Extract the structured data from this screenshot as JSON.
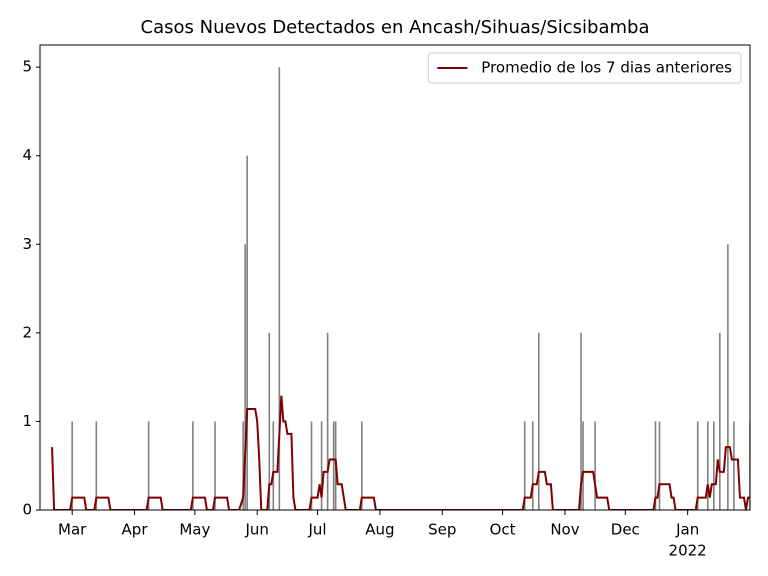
{
  "chart_data": {
    "type": "bar_line",
    "title": "Casos Nuevos Detectados en Ancash/Sihuas/Sicsibamba",
    "xlim": [
      -16,
      337
    ],
    "xticks": [
      {
        "value": 0,
        "label": "Mar"
      },
      {
        "value": 31,
        "label": "Apr"
      },
      {
        "value": 61,
        "label": "May"
      },
      {
        "value": 92,
        "label": "Jun"
      },
      {
        "value": 122,
        "label": "Jul"
      },
      {
        "value": 153,
        "label": "Aug"
      },
      {
        "value": 184,
        "label": "Sep"
      },
      {
        "value": 214,
        "label": "Oct"
      },
      {
        "value": 245,
        "label": "Nov"
      },
      {
        "value": 275,
        "label": "Dec"
      },
      {
        "value": 306,
        "label": "Jan"
      }
    ],
    "xtick_sublabels": [
      {
        "value": 306,
        "label": "2022"
      }
    ],
    "ylim": [
      0,
      5.25
    ],
    "yticks": [
      0,
      1,
      2,
      3,
      4,
      5
    ],
    "legend": "upper right",
    "bars": {
      "color": "#808080",
      "x": [
        0,
        12,
        38,
        60,
        71,
        85,
        86,
        87,
        98,
        100,
        103,
        119,
        124,
        127,
        130,
        131,
        144,
        225,
        229,
        232,
        253,
        254,
        260,
        290,
        292,
        311,
        316,
        319,
        322,
        326,
        329,
        337
      ],
      "values": [
        1,
        1,
        1,
        1,
        1,
        1,
        3,
        4,
        2,
        1,
        5,
        1,
        1,
        2,
        1,
        1,
        1,
        1,
        1,
        2,
        2,
        1,
        1,
        1,
        1,
        1,
        1,
        1,
        2,
        3,
        1,
        1
      ]
    },
    "series": [
      {
        "name": "Promedio de los 7 dias anteriores",
        "color": "#800000",
        "x": [
          -10,
          -9,
          -1,
          0,
          6,
          7,
          11,
          12,
          18,
          19,
          37,
          38,
          44,
          45,
          59,
          60,
          66,
          67,
          70,
          71,
          77,
          78,
          83,
          85,
          87,
          91,
          92,
          93,
          94,
          97,
          98,
          99,
          100,
          102,
          104,
          105,
          106,
          107,
          109,
          110,
          111,
          118,
          119,
          122,
          123,
          124,
          125,
          127,
          128,
          131,
          132,
          134,
          136,
          143,
          144,
          150,
          151,
          224,
          225,
          228,
          229,
          231,
          232,
          235,
          236,
          238,
          239,
          252,
          253,
          254,
          259,
          261,
          266,
          267,
          289,
          290,
          291,
          292,
          297,
          298,
          299,
          300,
          310,
          311,
          315,
          316,
          317,
          318,
          320,
          321,
          322,
          324,
          325,
          327,
          328,
          331,
          332,
          334,
          335,
          336,
          337
        ],
        "values": [
          0.71,
          0,
          0,
          0.14,
          0.14,
          0,
          0,
          0.14,
          0.14,
          0,
          0,
          0.14,
          0.14,
          0,
          0,
          0.14,
          0.14,
          0,
          0,
          0.14,
          0.14,
          0,
          0,
          0.14,
          1.14,
          1.14,
          1.0,
          0.57,
          0,
          0,
          0.29,
          0.29,
          0.43,
          0.43,
          1.29,
          1.0,
          1.0,
          0.86,
          0.86,
          0.14,
          0,
          0,
          0.14,
          0.14,
          0.29,
          0.14,
          0.43,
          0.43,
          0.57,
          0.57,
          0.29,
          0.29,
          0,
          0,
          0.14,
          0.14,
          0,
          0,
          0.14,
          0.14,
          0.29,
          0.29,
          0.43,
          0.43,
          0.29,
          0.29,
          0,
          0,
          0.29,
          0.43,
          0.43,
          0.14,
          0.14,
          0,
          0,
          0.14,
          0.14,
          0.29,
          0.29,
          0.14,
          0.14,
          0,
          0,
          0.14,
          0.14,
          0.29,
          0.14,
          0.29,
          0.29,
          0.57,
          0.43,
          0.43,
          0.71,
          0.71,
          0.57,
          0.57,
          0.14,
          0.14,
          0,
          0.14,
          0.14
        ]
      }
    ]
  }
}
